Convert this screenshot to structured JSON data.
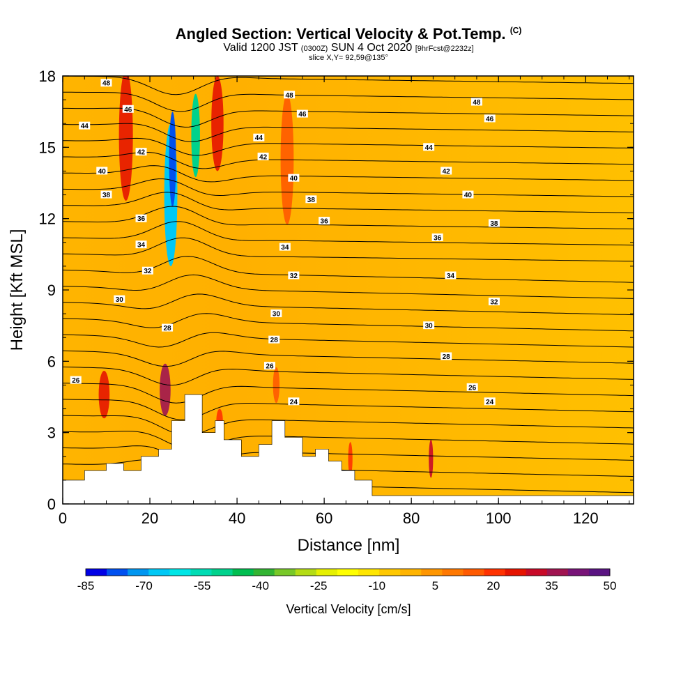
{
  "header": {
    "title_main": "Angled Section: Vertical Velocity & Pot.Temp.",
    "title_suffix": "(C)",
    "valid_prefix": "Valid 1200 JST",
    "valid_zulu": "(0300Z)",
    "valid_date": "SUN 4 Oct 2020",
    "valid_fcst": "[9hrFcst@2232z]",
    "slice": "slice X,Y= 92,59@135°"
  },
  "chart_data": {
    "type": "heatmap",
    "xlabel": "Distance [nm]",
    "ylabel": "Height [Kft MSL]",
    "xlim": [
      0,
      131
    ],
    "ylim": [
      0,
      18
    ],
    "x_ticks": [
      "0",
      "20",
      "40",
      "60",
      "80",
      "100",
      "120"
    ],
    "y_ticks": [
      "0",
      "3",
      "6",
      "9",
      "12",
      "15",
      "18"
    ],
    "x_tick_values": [
      0,
      20,
      40,
      60,
      80,
      100,
      120
    ],
    "y_tick_values": [
      0,
      3,
      6,
      9,
      12,
      15,
      18
    ],
    "colorbar": {
      "title": "Vertical Velocity [cm/s]",
      "labels": [
        "-85",
        "-70",
        "-55",
        "-40",
        "-25",
        "-10",
        "5",
        "20",
        "35",
        "50"
      ],
      "colors": [
        "#0000e6",
        "#0050f0",
        "#0096f0",
        "#00c8f5",
        "#00e6e6",
        "#00dcb4",
        "#00d28c",
        "#00be50",
        "#32b432",
        "#78c828",
        "#b4dc14",
        "#e6f000",
        "#ffff00",
        "#ffe600",
        "#ffc800",
        "#ffb400",
        "#ff9600",
        "#ff7800",
        "#ff5a00",
        "#ff3200",
        "#e61400",
        "#c80a28",
        "#a01450",
        "#781478",
        "#5a1482"
      ]
    },
    "terrain": [
      [
        0,
        1.0
      ],
      [
        5,
        1.0
      ],
      [
        5,
        1.4
      ],
      [
        10,
        1.4
      ],
      [
        10,
        1.7
      ],
      [
        14,
        1.7
      ],
      [
        14,
        1.4
      ],
      [
        18,
        1.4
      ],
      [
        18,
        2.0
      ],
      [
        22,
        2.0
      ],
      [
        22,
        2.3
      ],
      [
        25,
        2.3
      ],
      [
        25,
        3.5
      ],
      [
        28,
        3.5
      ],
      [
        28,
        4.6
      ],
      [
        32,
        4.6
      ],
      [
        32,
        3.0
      ],
      [
        35,
        3.0
      ],
      [
        35,
        3.5
      ],
      [
        37,
        3.5
      ],
      [
        37,
        2.7
      ],
      [
        41,
        2.7
      ],
      [
        41,
        2.0
      ],
      [
        45,
        2.0
      ],
      [
        45,
        2.5
      ],
      [
        48,
        2.5
      ],
      [
        48,
        3.5
      ],
      [
        51,
        3.5
      ],
      [
        51,
        2.8
      ],
      [
        55,
        2.8
      ],
      [
        55,
        2.0
      ],
      [
        58,
        2.0
      ],
      [
        58,
        2.3
      ],
      [
        61,
        2.3
      ],
      [
        61,
        1.8
      ],
      [
        64,
        1.8
      ],
      [
        64,
        1.4
      ],
      [
        67,
        1.4
      ],
      [
        67,
        1.0
      ],
      [
        71,
        1.0
      ],
      [
        71,
        0.35
      ],
      [
        131,
        0.35
      ]
    ],
    "isentrope_labels": [
      {
        "x": 10,
        "y": 17.7,
        "text": "48"
      },
      {
        "x": 15,
        "y": 16.6,
        "text": "46"
      },
      {
        "x": 5,
        "y": 15.9,
        "text": "44"
      },
      {
        "x": 18,
        "y": 14.8,
        "text": "42"
      },
      {
        "x": 9,
        "y": 14.0,
        "text": "40"
      },
      {
        "x": 10,
        "y": 13.0,
        "text": "38"
      },
      {
        "x": 18,
        "y": 12.0,
        "text": "36"
      },
      {
        "x": 18,
        "y": 10.9,
        "text": "34"
      },
      {
        "x": 19.5,
        "y": 9.8,
        "text": "32"
      },
      {
        "x": 13,
        "y": 8.6,
        "text": "30"
      },
      {
        "x": 24,
        "y": 7.4,
        "text": "28"
      },
      {
        "x": 3,
        "y": 5.2,
        "text": "26"
      },
      {
        "x": 52,
        "y": 17.2,
        "text": "48"
      },
      {
        "x": 55,
        "y": 16.4,
        "text": "46"
      },
      {
        "x": 45,
        "y": 15.4,
        "text": "44"
      },
      {
        "x": 46,
        "y": 14.6,
        "text": "42"
      },
      {
        "x": 53,
        "y": 13.7,
        "text": "40"
      },
      {
        "x": 57,
        "y": 12.8,
        "text": "38"
      },
      {
        "x": 60,
        "y": 11.9,
        "text": "36"
      },
      {
        "x": 51,
        "y": 10.8,
        "text": "34"
      },
      {
        "x": 53,
        "y": 9.6,
        "text": "32"
      },
      {
        "x": 49,
        "y": 8.0,
        "text": "30"
      },
      {
        "x": 48.5,
        "y": 6.9,
        "text": "28"
      },
      {
        "x": 47.5,
        "y": 5.8,
        "text": "26"
      },
      {
        "x": 53,
        "y": 4.3,
        "text": "24"
      },
      {
        "x": 95,
        "y": 16.9,
        "text": "48"
      },
      {
        "x": 98,
        "y": 16.2,
        "text": "46"
      },
      {
        "x": 84,
        "y": 15.0,
        "text": "44"
      },
      {
        "x": 88,
        "y": 14.0,
        "text": "42"
      },
      {
        "x": 93,
        "y": 13.0,
        "text": "40"
      },
      {
        "x": 99,
        "y": 11.8,
        "text": "38"
      },
      {
        "x": 86,
        "y": 11.2,
        "text": "36"
      },
      {
        "x": 89,
        "y": 9.6,
        "text": "34"
      },
      {
        "x": 99,
        "y": 8.5,
        "text": "32"
      },
      {
        "x": 84,
        "y": 7.5,
        "text": "30"
      },
      {
        "x": 88,
        "y": 6.2,
        "text": "28"
      },
      {
        "x": 94,
        "y": 4.9,
        "text": "26"
      },
      {
        "x": 98,
        "y": 4.3,
        "text": "24"
      }
    ],
    "updrafts": [
      {
        "x": 14.5,
        "y": 15.5,
        "w": 3.2,
        "h": 5.5,
        "color": "#e61400"
      },
      {
        "x": 35.5,
        "y": 16.0,
        "w": 2.8,
        "h": 4.0,
        "color": "#e61400"
      },
      {
        "x": 51.5,
        "y": 14.5,
        "w": 3.0,
        "h": 5.5,
        "color": "#ff5a00"
      },
      {
        "x": 9.5,
        "y": 4.6,
        "w": 2.5,
        "h": 2.0,
        "color": "#e61400"
      },
      {
        "x": 23.5,
        "y": 4.8,
        "w": 2.5,
        "h": 2.2,
        "color": "#a01450"
      },
      {
        "x": 84.5,
        "y": 1.9,
        "w": 1.0,
        "h": 1.6,
        "color": "#c80a28"
      },
      {
        "x": 66,
        "y": 1.9,
        "w": 1.0,
        "h": 1.4,
        "color": "#ff3200"
      },
      {
        "x": 49,
        "y": 5.0,
        "w": 1.5,
        "h": 1.5,
        "color": "#ff5a00"
      },
      {
        "x": 36,
        "y": 3.5,
        "w": 1.5,
        "h": 1.0,
        "color": "#ff3200"
      }
    ],
    "downdrafts": [
      {
        "x": 24.8,
        "y": 13.0,
        "w": 3.0,
        "h": 6.0,
        "color": "#00c8f5"
      },
      {
        "x": 25.2,
        "y": 14.5,
        "w": 1.6,
        "h": 4.0,
        "color": "#0050f0"
      },
      {
        "x": 30.5,
        "y": 15.5,
        "w": 2.0,
        "h": 3.5,
        "color": "#00d28c"
      }
    ]
  }
}
